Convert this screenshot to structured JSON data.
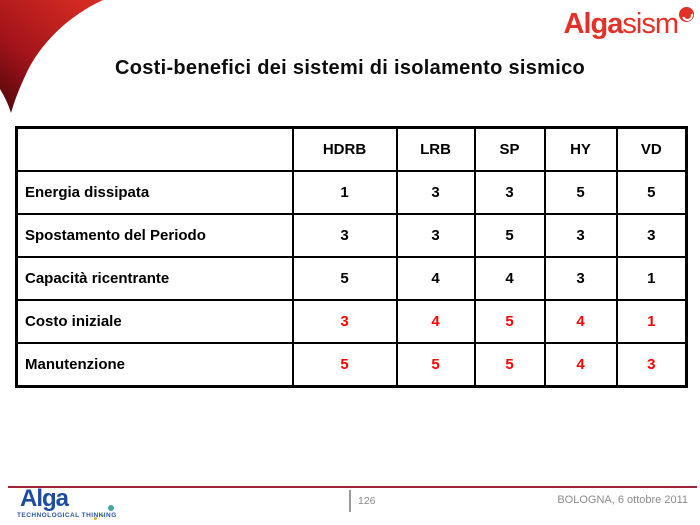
{
  "brand": {
    "logo_bold": "Alga",
    "logo_light": "sism"
  },
  "title": "Costi-benefici dei sistemi di isolamento sismico",
  "table": {
    "header": [
      "",
      "HDRB",
      "LRB",
      "SP",
      "HY",
      "VD"
    ],
    "rows": [
      {
        "label": "Energia dissipata",
        "values": [
          "1",
          "3",
          "3",
          "5",
          "5"
        ],
        "value_color": "black"
      },
      {
        "label": "Spostamento del Periodo",
        "values": [
          "3",
          "3",
          "5",
          "3",
          "3"
        ],
        "value_color": "black"
      },
      {
        "label": "Capacità ricentrante",
        "values": [
          "5",
          "4",
          "4",
          "3",
          "1"
        ],
        "value_color": "black"
      },
      {
        "label": "Costo iniziale",
        "values": [
          "3",
          "4",
          "5",
          "4",
          "1"
        ],
        "value_color": "red"
      },
      {
        "label": "Manutenzione",
        "values": [
          "5",
          "5",
          "5",
          "4",
          "3"
        ],
        "value_color": "red"
      }
    ]
  },
  "footer": {
    "brand_name": "Alga",
    "tagline": "TECHNOLOGICAL THINKING",
    "page_number": "126",
    "venue_date": "BOLOGNA, 6 ottobre 2011"
  },
  "colors": {
    "accent_red": "#e23128",
    "swoosh_bright": "#d32a22",
    "swoosh_dark": "#4e060a",
    "footer_line": "#9e2136",
    "table_value_red": "#ff0000",
    "alga_blue": "#1e4da0",
    "footer_text_gray": "#8a8a8a"
  }
}
